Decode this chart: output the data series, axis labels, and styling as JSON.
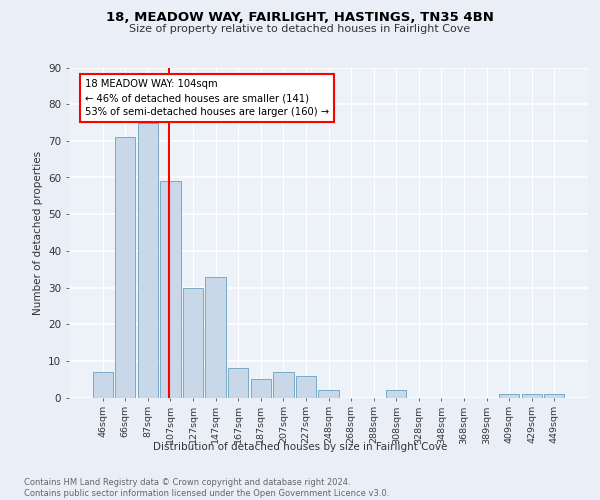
{
  "title_line1": "18, MEADOW WAY, FAIRLIGHT, HASTINGS, TN35 4BN",
  "title_line2": "Size of property relative to detached houses in Fairlight Cove",
  "xlabel": "Distribution of detached houses by size in Fairlight Cove",
  "ylabel": "Number of detached properties",
  "bar_labels": [
    "46sqm",
    "66sqm",
    "87sqm",
    "107sqm",
    "127sqm",
    "147sqm",
    "167sqm",
    "187sqm",
    "207sqm",
    "227sqm",
    "248sqm",
    "268sqm",
    "288sqm",
    "308sqm",
    "328sqm",
    "348sqm",
    "368sqm",
    "389sqm",
    "409sqm",
    "429sqm",
    "449sqm"
  ],
  "bar_values": [
    7,
    71,
    75,
    59,
    30,
    33,
    8,
    5,
    7,
    6,
    2,
    0,
    0,
    2,
    0,
    0,
    0,
    0,
    1,
    1,
    1
  ],
  "bar_color": "#c8d8e8",
  "bar_edge_color": "#6a9fc0",
  "annotation_text": "18 MEADOW WAY: 104sqm\n← 46% of detached houses are smaller (141)\n53% of semi-detached houses are larger (160) →",
  "annotation_box_color": "white",
  "annotation_box_edge_color": "red",
  "vline_color": "red",
  "bg_color": "#eaeff7",
  "plot_bg_color": "#edf1f8",
  "grid_color": "white",
  "footer_text": "Contains HM Land Registry data © Crown copyright and database right 2024.\nContains public sector information licensed under the Open Government Licence v3.0.",
  "ylim": [
    0,
    90
  ],
  "yticks": [
    0,
    10,
    20,
    30,
    40,
    50,
    60,
    70,
    80,
    90
  ]
}
